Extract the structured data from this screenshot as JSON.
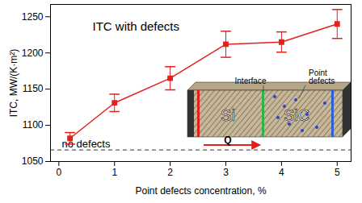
{
  "chart_data": {
    "type": "line",
    "title": "ITC with defects",
    "x_label": "Point defects concentration, %",
    "y_label": "ITC, MW/(K·m²)",
    "x": [
      0.2,
      1,
      2,
      3,
      4,
      5
    ],
    "series": [
      {
        "name": "ITC",
        "color": "#e3201b",
        "marker": "square",
        "line_style": "solid",
        "values": [
          1082,
          1131,
          1165,
          1212,
          1215,
          1240
        ],
        "errors": [
          8,
          12,
          16,
          18,
          14,
          20
        ]
      }
    ],
    "reference": {
      "value": 1066,
      "label": "no defects",
      "line_style": "dashed",
      "color": "#333333"
    },
    "xlim": [
      -0.15,
      5.25
    ],
    "xticks": [
      0,
      1,
      2,
      3,
      4,
      5
    ],
    "ylim": [
      1050,
      1267
    ],
    "yticks": [
      1050,
      1100,
      1150,
      1200,
      1250
    ],
    "grid": false,
    "inset": {
      "left_material": "Si",
      "right_material": "SiC",
      "interface": "Interface",
      "defects": "Point defects",
      "flux": "Q"
    }
  }
}
